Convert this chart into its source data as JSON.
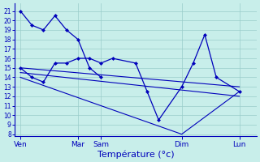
{
  "bg_color": "#c8eeea",
  "grid_color": "#99ccca",
  "line_color": "#0000bb",
  "xlabel": "Température (°c)",
  "ylim_min": 7.8,
  "ylim_max": 21.8,
  "yticks": [
    8,
    9,
    10,
    11,
    12,
    13,
    14,
    15,
    16,
    17,
    18,
    19,
    20,
    21
  ],
  "xtick_positions": [
    0,
    5,
    7,
    14,
    19
  ],
  "xtick_labels": [
    "Ven",
    "Mar",
    "Sam",
    "Dim",
    "Lun"
  ],
  "xlim_min": -0.5,
  "xlim_max": 20.5,
  "series": [
    {
      "x": [
        0,
        1,
        2,
        3,
        4,
        5,
        6,
        7
      ],
      "y": [
        21,
        19.5,
        19,
        20.5,
        19,
        18,
        15,
        14
      ],
      "markers": true,
      "lw": 0.9
    },
    {
      "x": [
        0,
        1,
        2,
        3,
        4,
        5,
        6,
        7,
        8,
        10,
        11,
        12,
        14,
        15,
        16,
        17,
        19
      ],
      "y": [
        15,
        14,
        13.5,
        15.5,
        15.5,
        16,
        16,
        15.5,
        16,
        15.5,
        12.5,
        9.5,
        13,
        15.5,
        18.5,
        14,
        12.5
      ],
      "markers": true,
      "lw": 0.9
    },
    {
      "x": [
        0,
        19
      ],
      "y": [
        15,
        13
      ],
      "markers": false,
      "lw": 0.8
    },
    {
      "x": [
        0,
        19
      ],
      "y": [
        14.5,
        12
      ],
      "markers": false,
      "lw": 0.8
    },
    {
      "x": [
        0,
        14,
        19
      ],
      "y": [
        14,
        8,
        12.5
      ],
      "markers": false,
      "lw": 0.8
    }
  ]
}
